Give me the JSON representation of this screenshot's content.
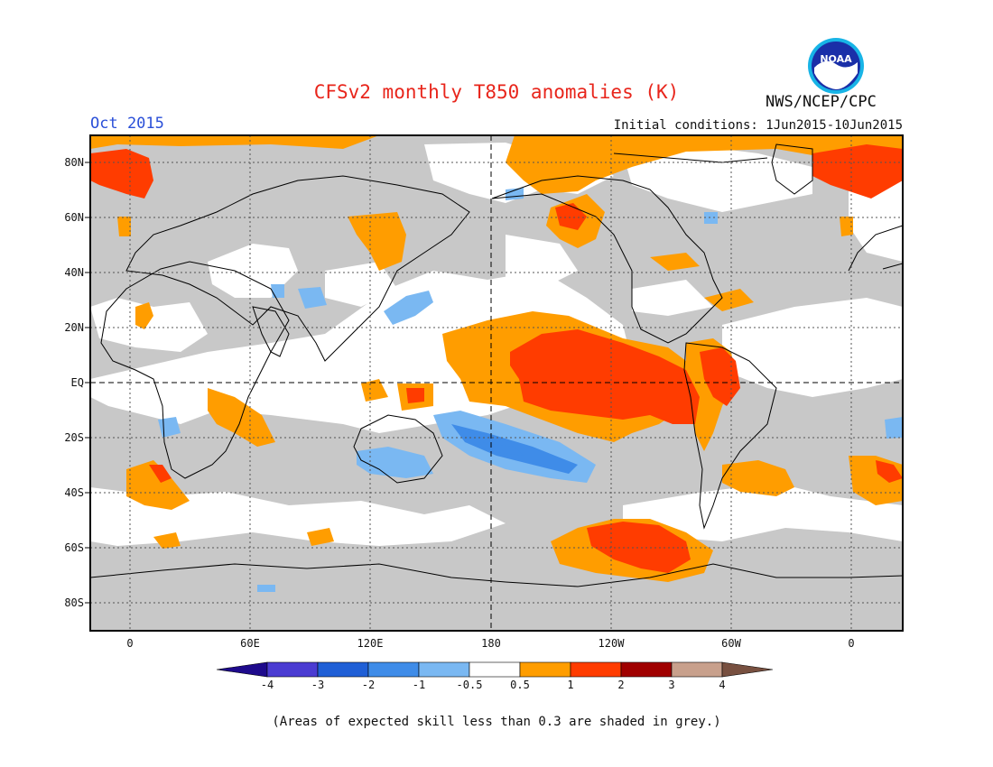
{
  "title": "CFSv2 monthly T850 anomalies (K)",
  "valid_month": "Oct 2015",
  "initial_conditions": "Initial conditions: 1Jun2015-10Jun2015",
  "agency": "NWS/NCEP/CPC",
  "logo_text": "NOAA",
  "footnote": "(Areas of expected skill less than 0.3 are shaded in grey.)",
  "lat_labels": [
    "80N",
    "60N",
    "40N",
    "20N",
    "EQ",
    "20S",
    "40S",
    "60S",
    "80S"
  ],
  "lon_labels": [
    "0",
    "60E",
    "120E",
    "180",
    "120W",
    "60W",
    "0"
  ],
  "colorbar": {
    "labels": [
      "-4",
      "-3",
      "-2",
      "-1",
      "-0.5",
      "0.5",
      "1",
      "2",
      "3",
      "4"
    ],
    "colors": [
      "#1e0a8c",
      "#4b3cd2",
      "#1f5fd6",
      "#3f8ce8",
      "#7ab8f2",
      "#ffffff",
      "#ff9d00",
      "#ff3c00",
      "#a00000",
      "#c8a08c",
      "#785040"
    ]
  },
  "colors": {
    "grey_low_skill": "#c8c8c8",
    "title": "#e8251b",
    "month": "#2a4fd8"
  }
}
